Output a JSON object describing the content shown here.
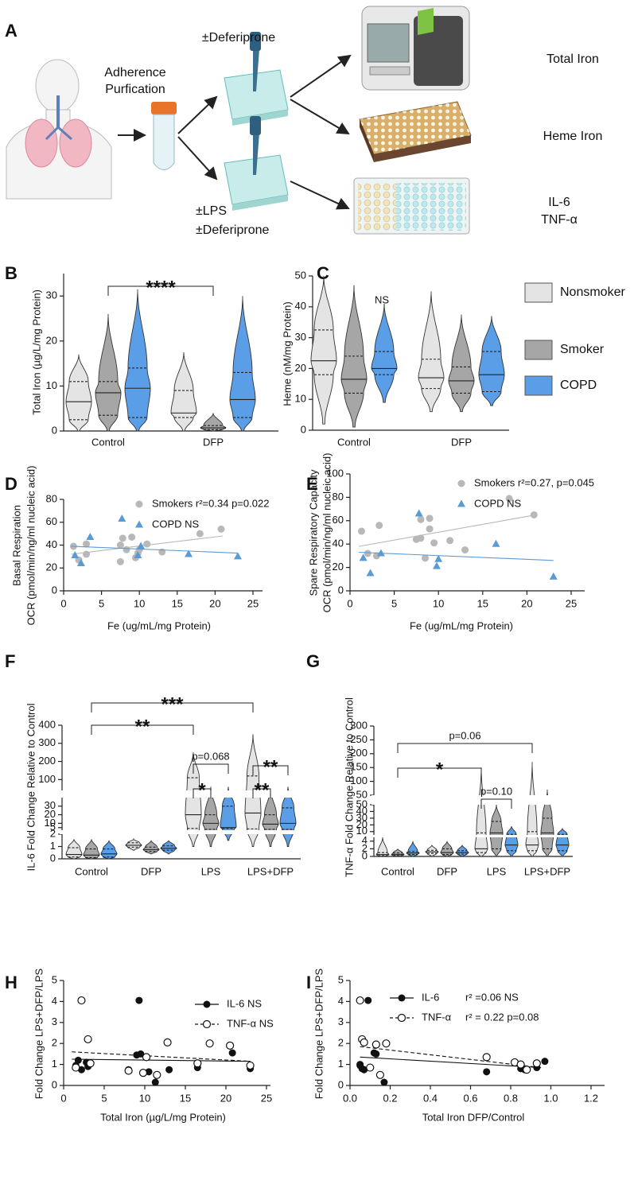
{
  "panel_a": {
    "letter": "A",
    "texts": [
      "Adherence",
      "Purfication",
      "±Deferiprone",
      "±LPS",
      "±Deferiprone",
      "Total Iron",
      "Heme Iron",
      "IL-6",
      "TNF-α"
    ]
  },
  "groups": [
    {
      "name": "Nonsmoker",
      "color": "#e4e4e4"
    },
    {
      "name": "Smoker",
      "color": "#a6a6a6"
    },
    {
      "name": "COPD",
      "color": "#5b9ee8"
    }
  ],
  "chart_data": [
    {
      "type": "violin",
      "panel": "B",
      "ylabel": "Total  Iron (µg/L/mg Protein)",
      "categories": [
        "Control",
        "DFP"
      ],
      "ylim": [
        0,
        35
      ],
      "yticks": [
        0,
        10,
        20,
        30
      ],
      "series": [
        {
          "violins": [
            {
              "min": 0,
              "q1": 2.5,
              "median": 6.5,
              "q3": 11,
              "max": 17
            },
            {
              "min": 0,
              "q1": 3,
              "median": 4,
              "q3": 9,
              "max": 17.5
            }
          ]
        },
        {
          "violins": [
            {
              "min": 0,
              "q1": 3.5,
              "median": 8.5,
              "q3": 11,
              "max": 26
            },
            {
              "min": 0,
              "q1": 0.3,
              "median": 0.7,
              "q3": 1.2,
              "max": 4
            }
          ]
        },
        {
          "violins": [
            {
              "min": 0,
              "q1": 3,
              "median": 9.5,
              "q3": 14,
              "max": 31.5
            },
            {
              "min": 0,
              "q1": 3,
              "median": 7,
              "q3": 13,
              "max": 30
            }
          ]
        }
      ],
      "annotations": [
        {
          "text": "****",
          "from": [
            0,
            1
          ],
          "to": [
            1,
            1
          ]
        }
      ]
    },
    {
      "type": "violin",
      "panel": "C",
      "ylabel": "Heme (nM/mg Protein)",
      "categories": [
        "Control",
        "DFP"
      ],
      "ylim": [
        0,
        50
      ],
      "yticks": [
        0,
        10,
        20,
        30,
        40,
        50
      ],
      "note": "NS",
      "series": [
        {
          "violins": [
            {
              "min": 2,
              "q1": 18,
              "median": 22.5,
              "q3": 32.5,
              "max": 50
            },
            {
              "min": 6,
              "q1": 13.5,
              "median": 17,
              "q3": 23,
              "max": 45
            }
          ]
        },
        {
          "violins": [
            {
              "min": 1,
              "q1": 12,
              "median": 16.5,
              "q3": 24,
              "max": 47
            },
            {
              "min": 6,
              "q1": 12,
              "median": 16,
              "q3": 20.5,
              "max": 37.5
            }
          ]
        },
        {
          "violins": [
            {
              "min": 9,
              "q1": 18,
              "median": 20,
              "q3": 25.5,
              "max": 41
            },
            {
              "min": 8,
              "q1": 12.5,
              "median": 18,
              "q3": 25.5,
              "max": 37
            }
          ]
        }
      ]
    },
    {
      "type": "scatter",
      "panel": "D",
      "ylabel": [
        "Basal Respiration",
        "OCR (pmol/min/ng/ml nucleic acid)"
      ],
      "xlabel": "Fe (ug/mL/mg Protein)",
      "xlim": [
        0,
        25
      ],
      "xticks": [
        0,
        5,
        10,
        15,
        20,
        25
      ],
      "ylim": [
        0,
        80
      ],
      "yticks": [
        0,
        20,
        40,
        60,
        80
      ],
      "series": [
        {
          "name": "Smokers r²=0.34 p=0.022",
          "color": "#b8b8b8",
          "marker": "circle",
          "x": [
            1.3,
            2,
            3,
            3,
            7.5,
            7.8,
            8.3,
            9,
            9.5,
            9.8,
            10,
            11,
            13,
            18,
            20.8,
            7.5
          ],
          "values": [
            39,
            27,
            32,
            41,
            25.5,
            46,
            36,
            47,
            29,
            33,
            36,
            41,
            34,
            50,
            54,
            40
          ],
          "trend": {
            "x": [
              1,
              21
            ],
            "values": [
              32,
              48
            ]
          }
        },
        {
          "name": "COPD NS",
          "color": "#5b9bd5",
          "marker": "triangle",
          "x": [
            1.5,
            2.3,
            3.5,
            7.7,
            9.8,
            10.2,
            16.5,
            23
          ],
          "values": [
            31,
            24,
            47,
            63,
            31,
            39,
            32,
            30
          ],
          "trend": {
            "x": [
              1,
              23
            ],
            "values": [
              39,
              33
            ]
          }
        }
      ]
    },
    {
      "type": "scatter",
      "panel": "E",
      "ylabel": [
        "Spare Respiratory Capacity",
        "OCR (pmol/min/ng/ml nucleic acid)"
      ],
      "xlabel": "Fe (ug/mL/mg Protein)",
      "xlim": [
        0,
        25
      ],
      "xticks": [
        0,
        5,
        10,
        15,
        20,
        25
      ],
      "ylim": [
        0,
        100
      ],
      "yticks": [
        0,
        20,
        40,
        60,
        80,
        100
      ],
      "series": [
        {
          "name": "Smokers r²=0.27, p=0.045",
          "color": "#b8b8b8",
          "marker": "circle",
          "x": [
            1.3,
            2,
            3,
            3.3,
            7.5,
            8,
            8.5,
            9,
            9,
            9.5,
            11.3,
            13,
            18,
            20.8,
            8
          ],
          "values": [
            51,
            32,
            30,
            56,
            44,
            45,
            28,
            62,
            53,
            41,
            43,
            35,
            79,
            65,
            61
          ],
          "trend": {
            "x": [
              1,
              21
            ],
            "values": [
              38,
              65
            ]
          }
        },
        {
          "name": "COPD NS",
          "color": "#5b9bd5",
          "marker": "triangle",
          "x": [
            1.5,
            2.3,
            3.5,
            7.8,
            9.8,
            10,
            16.5,
            23
          ],
          "values": [
            28,
            15,
            32,
            66,
            21,
            27,
            40,
            12
          ],
          "trend": {
            "x": [
              1,
              23
            ],
            "values": [
              33,
              26
            ]
          }
        }
      ]
    },
    {
      "type": "violin",
      "panel": "F",
      "ylabel": "IL-6 Fold Change Relative to Control",
      "categories": [
        "Control",
        "DFP",
        "LPS",
        "LPS+DFP"
      ],
      "ysegments": [
        {
          "ylim": [
            0,
            2
          ],
          "yticks": [
            0,
            1,
            2
          ]
        },
        {
          "ylim": [
            2,
            40
          ],
          "yticks": [
            5,
            10,
            20,
            30
          ]
        },
        {
          "ylim": [
            40,
            400
          ],
          "yticks": [
            100,
            200,
            300,
            400
          ]
        }
      ],
      "series": [
        {
          "violins": [
            {
              "min": 0,
              "q1": 0.15,
              "median": 0.35,
              "q3": 0.9,
              "max": 1.6
            },
            {
              "min": 0.7,
              "q1": 0.95,
              "median": 1.1,
              "q3": 1.3,
              "max": 1.6
            },
            {
              "min": 1,
              "q1": 4,
              "median": 20,
              "q3": 110,
              "max": 250
            },
            {
              "min": 1,
              "q1": 3.5,
              "median": 22,
              "q3": 120,
              "max": 350
            }
          ]
        },
        {
          "violins": [
            {
              "min": 0,
              "q1": 0.1,
              "median": 0.3,
              "q3": 0.8,
              "max": 1.6
            },
            {
              "min": 0.4,
              "q1": 0.6,
              "median": 0.75,
              "q3": 0.95,
              "max": 1.5
            },
            {
              "min": 1,
              "q1": 3,
              "median": 10,
              "q3": 20,
              "max": 60
            },
            {
              "min": 1,
              "q1": 3,
              "median": 9,
              "q3": 20,
              "max": 50
            }
          ]
        },
        {
          "violins": [
            {
              "min": 0,
              "q1": 0.15,
              "median": 0.4,
              "q3": 0.8,
              "max": 1.5
            },
            {
              "min": 0.4,
              "q1": 0.7,
              "median": 0.85,
              "q3": 1.05,
              "max": 1.5
            },
            {
              "min": 1.5,
              "q1": 4,
              "median": 5,
              "q3": 30,
              "max": 60
            },
            {
              "min": 1,
              "q1": 3,
              "median": 10,
              "q3": 28,
              "max": 60
            }
          ]
        }
      ],
      "annotations": [
        {
          "text": "***",
          "from": [
            0,
            1
          ],
          "to": [
            3,
            0
          ]
        },
        {
          "text": "**",
          "from": [
            0,
            1
          ],
          "to": [
            2,
            0
          ]
        },
        {
          "text": "p=0.068",
          "from": [
            2,
            0
          ],
          "to": [
            2,
            2
          ]
        },
        {
          "text": "*",
          "from": [
            2,
            0
          ],
          "to": [
            2,
            1
          ]
        },
        {
          "text": "**",
          "from": [
            3,
            0
          ],
          "to": [
            3,
            2
          ]
        },
        {
          "text": "**",
          "from": [
            3,
            0
          ],
          "to": [
            3,
            1
          ]
        }
      ]
    },
    {
      "type": "violin",
      "panel": "G",
      "ylabel": "TNF-α Fold Change Relative to Control",
      "categories": [
        "Control",
        "DFP",
        "LPS",
        "LPS+DFP"
      ],
      "ysegments": [
        {
          "ylim": [
            0,
            5
          ],
          "yticks": [
            0,
            2,
            4
          ]
        },
        {
          "ylim": [
            5,
            50
          ],
          "yticks": [
            10,
            20,
            30,
            40,
            50
          ]
        },
        {
          "ylim": [
            50,
            300
          ],
          "yticks": [
            50,
            100,
            150,
            200,
            250,
            300
          ]
        }
      ],
      "series": [
        {
          "violins": [
            {
              "min": 0,
              "q1": 0.2,
              "median": 0.5,
              "q3": 1,
              "max": 5
            },
            {
              "min": 0,
              "q1": 0.8,
              "median": 1.2,
              "q3": 1.6,
              "max": 3
            },
            {
              "min": 0,
              "q1": 1,
              "median": 2,
              "q3": 8,
              "max": 150
            },
            {
              "min": 0,
              "q1": 1.5,
              "median": 3,
              "q3": 10,
              "max": 170
            }
          ]
        },
        {
          "violins": [
            {
              "min": 0,
              "q1": 0.2,
              "median": 0.5,
              "q3": 0.9,
              "max": 2
            },
            {
              "min": 0,
              "q1": 0.5,
              "median": 1,
              "q3": 2,
              "max": 4
            },
            {
              "min": 0,
              "q1": 2,
              "median": 8,
              "q3": 25,
              "max": 50
            },
            {
              "min": 0,
              "q1": 2,
              "median": 8,
              "q3": 30,
              "max": 70
            }
          ]
        },
        {
          "violins": [
            {
              "min": 0,
              "q1": 0.5,
              "median": 0.9,
              "q3": 1.3,
              "max": 4
            },
            {
              "min": 0,
              "q1": 0.6,
              "median": 1,
              "q3": 1.5,
              "max": 3
            },
            {
              "min": 0,
              "q1": 1.5,
              "median": 3,
              "q3": 6,
              "max": 18
            },
            {
              "min": 0,
              "q1": 1.5,
              "median": 3,
              "q3": 6,
              "max": 15
            }
          ]
        }
      ],
      "annotations": [
        {
          "text": "p=0.06",
          "from": [
            0,
            1
          ],
          "to": [
            3,
            0
          ]
        },
        {
          "text": "*",
          "from": [
            0,
            1
          ],
          "to": [
            2,
            0
          ]
        },
        {
          "text": "p=0.10",
          "from": [
            2,
            0
          ],
          "to": [
            2,
            2
          ]
        }
      ]
    },
    {
      "type": "scatter",
      "panel": "H",
      "ylabel": [
        "Fold Change LPS+DFP/LPS"
      ],
      "xlabel": "Total Iron (µg/L/mg Protein)",
      "xlim": [
        0,
        25
      ],
      "xticks": [
        0,
        5,
        10,
        15,
        20,
        25
      ],
      "ylim": [
        0,
        5
      ],
      "yticks": [
        0,
        1,
        2,
        3,
        4,
        5
      ],
      "legend_lines": true,
      "series": [
        {
          "name": "IL-6 NS",
          "color": "#111111",
          "marker": "circle",
          "x": [
            1.5,
            1.8,
            2.2,
            2.8,
            3,
            8,
            9,
            9.3,
            9.5,
            10.5,
            11.3,
            13,
            16.5,
            20.8,
            23
          ],
          "values": [
            0.95,
            1.2,
            0.75,
            1.1,
            0.9,
            0.75,
            1.45,
            4.05,
            1.5,
            0.65,
            0.15,
            0.75,
            0.85,
            1.55,
            0.8
          ],
          "trend": {
            "x": [
              1,
              23
            ],
            "values": [
              1.25,
              1.15
            ]
          }
        },
        {
          "name": "TNF-α NS",
          "color": "#111111",
          "marker": "open-circle",
          "dashed": true,
          "x": [
            1.5,
            2.2,
            3,
            3.3,
            8,
            9.8,
            10.2,
            11.5,
            12.8,
            16.5,
            18,
            20.5,
            23
          ],
          "values": [
            0.85,
            4.05,
            2.2,
            1.05,
            0.7,
            0.6,
            1.35,
            0.5,
            2.05,
            1.05,
            2,
            1.9,
            0.95
          ],
          "trend": {
            "x": [
              1,
              23
            ],
            "values": [
              1.6,
              1.15
            ]
          }
        }
      ]
    },
    {
      "type": "scatter",
      "panel": "I",
      "ylabel": [
        "Fold Change LPS+DFP/LPS"
      ],
      "xlabel": "Total Iron DFP/Control",
      "xlim": [
        0,
        1.2
      ],
      "xticks": [
        {
          "value": 0,
          "label": "0.0"
        },
        0.2,
        0.4,
        0.6,
        0.8,
        {
          "value": 1,
          "label": "1.0"
        },
        1.2
      ],
      "ylim": [
        0,
        5
      ],
      "yticks": [
        0,
        1,
        2,
        3,
        4,
        5
      ],
      "legend_lines": true,
      "series": [
        {
          "name": "IL-6",
          "stat": "r² =0.06 NS",
          "color": "#111111",
          "marker": "circle",
          "x": [
            0.05,
            0.06,
            0.07,
            0.09,
            0.12,
            0.13,
            0.17,
            0.68,
            0.85,
            0.87,
            0.93,
            0.97,
            0.05
          ],
          "values": [
            1,
            0.8,
            0.75,
            4.05,
            1.55,
            1.5,
            0.15,
            0.65,
            0.8,
            0.75,
            0.85,
            1.15,
            0.95
          ],
          "trend": {
            "x": [
              0.05,
              0.95
            ],
            "values": [
              1.35,
              0.85
            ]
          }
        },
        {
          "name": "TNF-α",
          "stat": "r² = 0.22 p=0.08",
          "color": "#111111",
          "marker": "open-circle",
          "dashed": true,
          "x": [
            0.05,
            0.06,
            0.07,
            0.1,
            0.13,
            0.15,
            0.18,
            0.68,
            0.82,
            0.85,
            0.88,
            0.93
          ],
          "values": [
            4.05,
            2.2,
            2.05,
            0.85,
            1.95,
            0.5,
            2,
            1.35,
            1.1,
            1,
            0.75,
            1.05
          ],
          "trend": {
            "x": [
              0.05,
              0.95
            ],
            "values": [
              1.85,
              0.85
            ]
          }
        }
      ]
    }
  ]
}
